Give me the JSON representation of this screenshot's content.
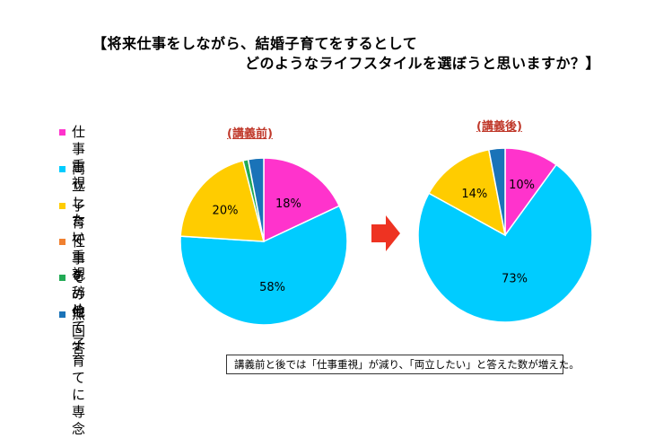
{
  "title": {
    "line1": "【将来仕事をしながら、結婚子育てをするとして",
    "line2": "どのようなライフスタイルを選ぼうと思いますか？】"
  },
  "colors": {
    "work": "#ff33cc",
    "both": "#00ccff",
    "child": "#ffcc00",
    "quit": "#f08030",
    "other": "#22aa55",
    "none": "#1a73b8",
    "title_red": "#c0392b",
    "arrow": "#ee3322"
  },
  "note": "講義前と後では「仕事重視」が減り、「両立したい」と答えた数が増えた。",
  "chart_data": [
    {
      "type": "pie",
      "title": "(講義前)",
      "categories": [
        "仕事重視",
        "両立したい",
        "子育て重視",
        "仕事を辞めて\n子育てに専念",
        "その他",
        "無回答"
      ],
      "values": [
        18,
        58,
        20,
        0,
        1,
        3
      ],
      "data_labels": [
        "18%",
        "58%",
        "20%",
        "",
        "",
        ""
      ],
      "legend_position": "left"
    },
    {
      "type": "pie",
      "title": "(講義後)",
      "categories": [
        "仕事重視",
        "両立したい",
        "子育て重視",
        "仕事を辞めて\n子育てに専念",
        "その他",
        "無回答"
      ],
      "values": [
        10,
        73,
        14,
        0,
        0,
        3
      ],
      "data_labels": [
        "10%",
        "73%",
        "14%",
        "",
        "",
        ""
      ],
      "legend_position": "left"
    }
  ],
  "legend": [
    {
      "label": "仕事重視",
      "color_key": "work"
    },
    {
      "label": "両立したい",
      "color_key": "both"
    },
    {
      "label": "子育て重視",
      "color_key": "child"
    },
    {
      "label": "仕事を辞めて\n子育てに専念",
      "color_key": "quit"
    },
    {
      "label": "その他",
      "color_key": "other"
    },
    {
      "label": "無回答",
      "color_key": "none"
    }
  ]
}
